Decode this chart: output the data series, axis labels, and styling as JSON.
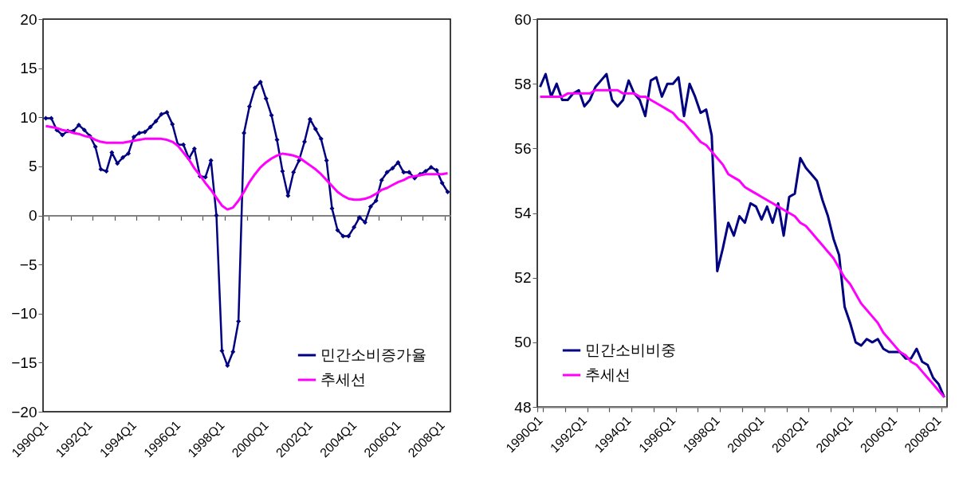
{
  "chart_data": [
    {
      "type": "line",
      "categories": [
        "1990Q1",
        null,
        null,
        null,
        null,
        null,
        null,
        null,
        "1992Q1",
        null,
        null,
        null,
        null,
        null,
        null,
        null,
        "1994Q1",
        null,
        null,
        null,
        null,
        null,
        null,
        null,
        "1996Q1",
        null,
        null,
        null,
        null,
        null,
        null,
        null,
        "1998Q1",
        null,
        null,
        null,
        null,
        null,
        null,
        null,
        "2000Q1",
        null,
        null,
        null,
        null,
        null,
        null,
        null,
        "2002Q1",
        null,
        null,
        null,
        null,
        null,
        null,
        null,
        "2004Q1",
        null,
        null,
        null,
        null,
        null,
        null,
        null,
        "2006Q1",
        null,
        null,
        null,
        null,
        null,
        null,
        null,
        "2008Q1",
        null
      ],
      "ylim": [
        -20,
        20
      ],
      "yticks": [
        -20,
        -15,
        -10,
        -5,
        0,
        5,
        10,
        15,
        20
      ],
      "legend": "bottom right",
      "marker": "diamond",
      "series": [
        {
          "name": "민간소비증가율",
          "color": "#000080",
          "values": [
            9.9,
            9.9,
            8.7,
            8.2,
            8.6,
            8.6,
            9.2,
            8.7,
            8.1,
            7.0,
            4.7,
            4.5,
            6.4,
            5.3,
            5.9,
            6.3,
            8.0,
            8.4,
            8.5,
            9.0,
            9.6,
            10.3,
            10.5,
            9.3,
            7.2,
            7.2,
            5.8,
            6.8,
            4.0,
            3.9,
            5.6,
            0.0,
            -13.8,
            -15.3,
            -13.9,
            -10.8,
            8.4,
            11.1,
            13.0,
            13.6,
            11.9,
            10.2,
            7.7,
            4.5,
            2.0,
            4.4,
            5.6,
            7.5,
            9.8,
            8.8,
            7.8,
            5.6,
            0.7,
            -1.5,
            -2.1,
            -2.1,
            -1.2,
            -0.2,
            -0.7,
            0.9,
            1.5,
            3.6,
            4.4,
            4.8,
            5.4,
            4.4,
            4.4,
            3.8,
            4.2,
            4.5,
            4.9,
            4.6,
            3.3,
            2.4
          ]
        },
        {
          "name": "추세선",
          "color": "#ff00ff",
          "marker": "none",
          "values": [
            9.1,
            9.0,
            8.9,
            8.7,
            8.6,
            8.4,
            8.3,
            8.1,
            8.0,
            7.7,
            7.5,
            7.4,
            7.4,
            7.4,
            7.4,
            7.5,
            7.6,
            7.7,
            7.8,
            7.8,
            7.8,
            7.8,
            7.7,
            7.5,
            7.1,
            6.4,
            5.7,
            4.8,
            4.1,
            3.3,
            2.6,
            1.8,
            1.0,
            0.6,
            0.8,
            1.5,
            2.4,
            3.4,
            4.2,
            4.9,
            5.4,
            5.8,
            6.1,
            6.3,
            6.2,
            6.1,
            5.9,
            5.5,
            5.1,
            4.7,
            4.2,
            3.6,
            3.0,
            2.4,
            2.0,
            1.7,
            1.6,
            1.6,
            1.7,
            1.9,
            2.2,
            2.6,
            2.8,
            3.1,
            3.4,
            3.6,
            3.9,
            4.0,
            4.1,
            4.2,
            4.2,
            4.2,
            4.2,
            4.3
          ]
        }
      ]
    },
    {
      "type": "line",
      "categories": [
        "1990Q1",
        null,
        null,
        null,
        null,
        null,
        null,
        null,
        "1992Q1",
        null,
        null,
        null,
        null,
        null,
        null,
        null,
        "1994Q1",
        null,
        null,
        null,
        null,
        null,
        null,
        null,
        "1996Q1",
        null,
        null,
        null,
        null,
        null,
        null,
        null,
        "1998Q1",
        null,
        null,
        null,
        null,
        null,
        null,
        null,
        "2000Q1",
        null,
        null,
        null,
        null,
        null,
        null,
        null,
        "2002Q1",
        null,
        null,
        null,
        null,
        null,
        null,
        null,
        "2004Q1",
        null,
        null,
        null,
        null,
        null,
        null,
        null,
        "2006Q1",
        null,
        null,
        null,
        null,
        null,
        null,
        null,
        "2008Q1",
        null
      ],
      "ylim": [
        48,
        60
      ],
      "yticks": [
        48,
        50,
        52,
        54,
        56,
        58,
        60
      ],
      "legend": "bottom left",
      "series": [
        {
          "name": "민간소비비중",
          "color": "#000080",
          "values": [
            57.9,
            58.3,
            57.6,
            58.0,
            57.5,
            57.5,
            57.7,
            57.8,
            57.3,
            57.5,
            57.9,
            58.1,
            58.3,
            57.5,
            57.3,
            57.5,
            58.1,
            57.7,
            57.5,
            57.0,
            58.1,
            58.2,
            57.6,
            58.0,
            58.0,
            58.2,
            57.0,
            58.0,
            57.6,
            57.1,
            57.2,
            56.4,
            52.2,
            52.9,
            53.7,
            53.3,
            53.9,
            53.7,
            54.3,
            54.2,
            53.8,
            54.2,
            53.7,
            54.3,
            53.3,
            54.5,
            54.6,
            55.7,
            55.4,
            55.2,
            55.0,
            54.4,
            53.9,
            53.2,
            52.7,
            51.1,
            50.6,
            50.0,
            49.9,
            50.1,
            50.0,
            50.1,
            49.8,
            49.7,
            49.7,
            49.7,
            49.5,
            49.5,
            49.8,
            49.4,
            49.3,
            48.9,
            48.7,
            48.3
          ]
        },
        {
          "name": "추세선",
          "color": "#ff00ff",
          "values": [
            57.6,
            57.6,
            57.6,
            57.6,
            57.6,
            57.7,
            57.7,
            57.7,
            57.7,
            57.7,
            57.8,
            57.8,
            57.8,
            57.8,
            57.8,
            57.7,
            57.7,
            57.7,
            57.6,
            57.6,
            57.5,
            57.4,
            57.3,
            57.2,
            57.1,
            56.9,
            56.8,
            56.6,
            56.4,
            56.2,
            56.1,
            55.9,
            55.7,
            55.5,
            55.2,
            55.1,
            55.0,
            54.8,
            54.7,
            54.6,
            54.5,
            54.4,
            54.3,
            54.2,
            54.1,
            54.0,
            53.9,
            53.7,
            53.6,
            53.4,
            53.2,
            53.0,
            52.8,
            52.6,
            52.3,
            52.0,
            51.8,
            51.5,
            51.2,
            51.0,
            50.8,
            50.6,
            50.3,
            50.1,
            49.9,
            49.7,
            49.6,
            49.4,
            49.3,
            49.1,
            48.9,
            48.7,
            48.5,
            48.3
          ]
        }
      ]
    }
  ]
}
